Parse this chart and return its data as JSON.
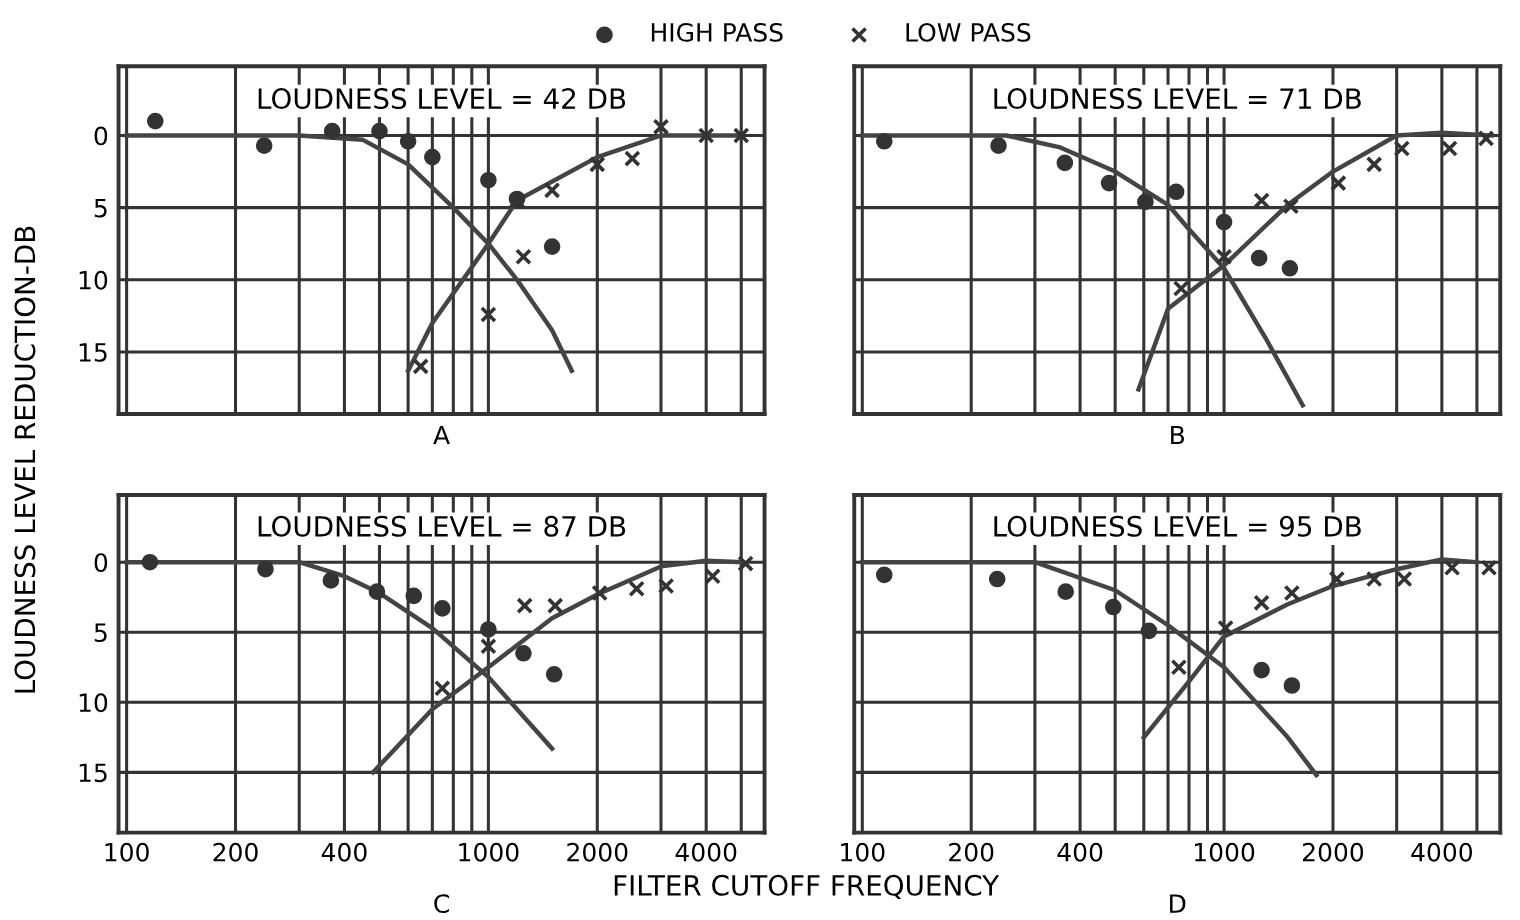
{
  "chart_data": [
    {
      "type": "scatter",
      "title": "LOUDNESS LEVEL = 42 DB",
      "ylabel": "LOUDNESS LEVEL REDUCTION-DB",
      "annotations": [
        "A"
      ],
      "legend": "top",
      "grid": true,
      "tick_labels": "y",
      "log": "x",
      "xlim": [
        95,
        5800
      ],
      "ylim": [
        19.3,
        -4.8
      ],
      "yticks": [
        0,
        5,
        10,
        15
      ],
      "xticks": [
        100,
        200,
        {
          "value": 300,
          "label": null
        },
        400,
        {
          "value": 500,
          "label": null
        },
        {
          "value": 600,
          "label": null
        },
        {
          "value": 700,
          "label": null
        },
        {
          "value": 800,
          "label": null
        },
        {
          "value": 900,
          "label": null
        },
        1000,
        2000,
        {
          "value": 3000,
          "label": null
        },
        4000,
        {
          "value": 5000,
          "label": null
        }
      ],
      "series": [
        {
          "name": "HIGH PASS",
          "type": "scatter",
          "marker": "circle",
          "color": "#333333",
          "x": [
            120,
            240,
            370,
            500,
            600,
            700,
            1000,
            1200,
            1500
          ],
          "values": [
            -1,
            0.7,
            -0.3,
            -0.3,
            0.4,
            1.5,
            3.1,
            4.4,
            7.7
          ]
        },
        {
          "name": "LOW PASS",
          "type": "scatter",
          "marker": "cross",
          "color": "#333333",
          "x": [
            650,
            1000,
            1200,
            1250,
            1500,
            2000,
            2500,
            3000,
            4000,
            5000
          ],
          "values": [
            16,
            12.4,
            4.5,
            8.4,
            3.8,
            2,
            1.6,
            -0.6,
            0,
            0
          ]
        },
        {
          "type": "line",
          "line_style": "solid",
          "color": "#444444",
          "x": [
            100,
            300,
            450,
            600,
            800,
            1000,
            1200,
            1500,
            1700
          ],
          "values": [
            0,
            0,
            0.3,
            2,
            5,
            7.5,
            10,
            13.5,
            16.3
          ]
        },
        {
          "type": "line",
          "line_style": "solid",
          "color": "#444444",
          "x": [
            600,
            700,
            1000,
            1200,
            2000,
            3000,
            5000
          ],
          "values": [
            16.3,
            13,
            7.5,
            4.5,
            1.5,
            0,
            0
          ]
        }
      ]
    },
    {
      "type": "scatter",
      "title": "LOUDNESS LEVEL = 71 DB",
      "annotations": [
        "B"
      ],
      "grid": true,
      "tick_labels": false,
      "log": "x",
      "xlim": [
        95,
        5800
      ],
      "ylim": [
        19.3,
        -4.8
      ],
      "yticks": [
        0,
        5,
        10,
        15
      ],
      "xticks": [
        100,
        200,
        {
          "value": 300,
          "label": null
        },
        400,
        {
          "value": 500,
          "label": null
        },
        {
          "value": 600,
          "label": null
        },
        {
          "value": 700,
          "label": null
        },
        {
          "value": 800,
          "label": null
        },
        {
          "value": 900,
          "label": null
        },
        1000,
        2000,
        {
          "value": 3000,
          "label": null
        },
        4000,
        {
          "value": 5000,
          "label": null
        }
      ],
      "series": [
        {
          "type": "scatter",
          "marker": "circle",
          "color": "#333333",
          "x": [
            115,
            238,
            363,
            481,
            606,
            737,
            1000,
            1250,
            1520
          ],
          "values": [
            0.4,
            0.7,
            1.9,
            3.3,
            4.6,
            3.9,
            6,
            8.5,
            9.2
          ]
        },
        {
          "type": "scatter",
          "marker": "cross",
          "color": "#333333",
          "x": [
            761,
            1000,
            1270,
            1530,
            2070,
            2600,
            3100,
            4200,
            5300
          ],
          "values": [
            10.6,
            8.4,
            4.5,
            4.9,
            3.3,
            2,
            0.9,
            0.9,
            0.2
          ]
        },
        {
          "type": "line",
          "line_style": "solid",
          "color": "#444444",
          "x": [
            100,
            250,
            350,
            500,
            700,
            800,
            1000,
            1300,
            1650
          ],
          "values": [
            0,
            0,
            0.8,
            2.5,
            4.8,
            6.5,
            9.2,
            14,
            18.7
          ]
        },
        {
          "type": "line",
          "line_style": "solid",
          "color": "#444444",
          "x": [
            580,
            700,
            1000,
            1500,
            2000,
            3000,
            4000,
            5500
          ],
          "values": [
            17.6,
            12,
            9,
            4.8,
            2.5,
            0,
            -0.2,
            0
          ]
        }
      ]
    },
    {
      "type": "scatter",
      "title": "LOUDNESS LEVEL = 87 DB",
      "xlabel": "FILTER CUTOFF FREQUENCY",
      "annotations": [
        "C"
      ],
      "grid": true,
      "log": "x",
      "xlim": [
        95,
        5800
      ],
      "ylim": [
        19.3,
        -4.8
      ],
      "yticks": [
        0,
        5,
        10,
        15
      ],
      "xticks": [
        100,
        200,
        {
          "value": 300,
          "label": null
        },
        400,
        {
          "value": 500,
          "label": null
        },
        {
          "value": 600,
          "label": null
        },
        {
          "value": 700,
          "label": null
        },
        {
          "value": 800,
          "label": null
        },
        {
          "value": 900,
          "label": null
        },
        1000,
        2000,
        {
          "value": 3000,
          "label": null
        },
        4000,
        {
          "value": 5000,
          "label": null
        }
      ],
      "series": [
        {
          "type": "scatter",
          "marker": "circle",
          "color": "#333333",
          "x": [
            116,
            242,
            367,
            492,
            622,
            746,
            1000,
            1250,
            1520
          ],
          "values": [
            0,
            0.5,
            1.3,
            2.1,
            2.4,
            3.3,
            4.8,
            6.5,
            8
          ]
        },
        {
          "type": "scatter",
          "marker": "cross",
          "color": "#333333",
          "x": [
            746,
            1000,
            1260,
            1530,
            2030,
            2570,
            3100,
            4170,
            5140
          ],
          "values": [
            9,
            6,
            3.1,
            3.1,
            2.2,
            1.9,
            1.7,
            1,
            0.1
          ]
        },
        {
          "type": "line",
          "line_style": "solid",
          "color": "#444444",
          "x": [
            100,
            300,
            400,
            500,
            700,
            1000,
            1500
          ],
          "values": [
            0,
            0,
            1,
            2.2,
            4.7,
            8.2,
            13.3
          ]
        },
        {
          "type": "line",
          "line_style": "solid",
          "color": "#444444",
          "x": [
            480,
            700,
            1000,
            1500,
            2000,
            3000,
            4000,
            5000
          ],
          "values": [
            15,
            10.5,
            7.5,
            4,
            2.3,
            0.3,
            -0.1,
            0
          ]
        }
      ]
    },
    {
      "type": "scatter",
      "title": "LOUDNESS LEVEL = 95 DB",
      "annotations": [
        "D"
      ],
      "grid": true,
      "tick_labels": "x",
      "log": "x",
      "xlim": [
        95,
        5800
      ],
      "ylim": [
        19.3,
        -4.8
      ],
      "yticks": [
        0,
        5,
        10,
        15
      ],
      "xticks": [
        100,
        200,
        {
          "value": 300,
          "label": null
        },
        400,
        {
          "value": 500,
          "label": null
        },
        {
          "value": 600,
          "label": null
        },
        {
          "value": 700,
          "label": null
        },
        {
          "value": 800,
          "label": null
        },
        {
          "value": 900,
          "label": null
        },
        1000,
        2000,
        {
          "value": 3000,
          "label": null
        },
        4000,
        {
          "value": 5000,
          "label": null
        }
      ],
      "series": [
        {
          "type": "scatter",
          "marker": "circle",
          "color": "#333333",
          "x": [
            115,
            236,
            365,
            494,
            620,
            1270,
            1540
          ],
          "values": [
            0.9,
            1.2,
            2.1,
            3.2,
            4.9,
            7.7,
            8.8
          ]
        },
        {
          "type": "scatter",
          "marker": "cross",
          "color": "#333333",
          "x": [
            750,
            1010,
            1270,
            1540,
            2050,
            2600,
            3150,
            4270,
            5400
          ],
          "values": [
            7.5,
            4.7,
            2.9,
            2.2,
            1.2,
            1.2,
            1.2,
            0.4,
            0.4
          ]
        },
        {
          "type": "line",
          "line_style": "solid",
          "color": "#444444",
          "x": [
            100,
            300,
            500,
            700,
            1000,
            1500,
            1800
          ],
          "values": [
            0,
            0,
            2,
            4.5,
            7.5,
            12.5,
            15.2
          ]
        },
        {
          "type": "line",
          "line_style": "solid",
          "color": "#444444",
          "x": [
            600,
            800,
            1000,
            1500,
            2000,
            3000,
            4000,
            5000
          ],
          "values": [
            12.5,
            8.5,
            5.3,
            3,
            1.7,
            0.5,
            -0.2,
            0
          ]
        }
      ]
    }
  ]
}
